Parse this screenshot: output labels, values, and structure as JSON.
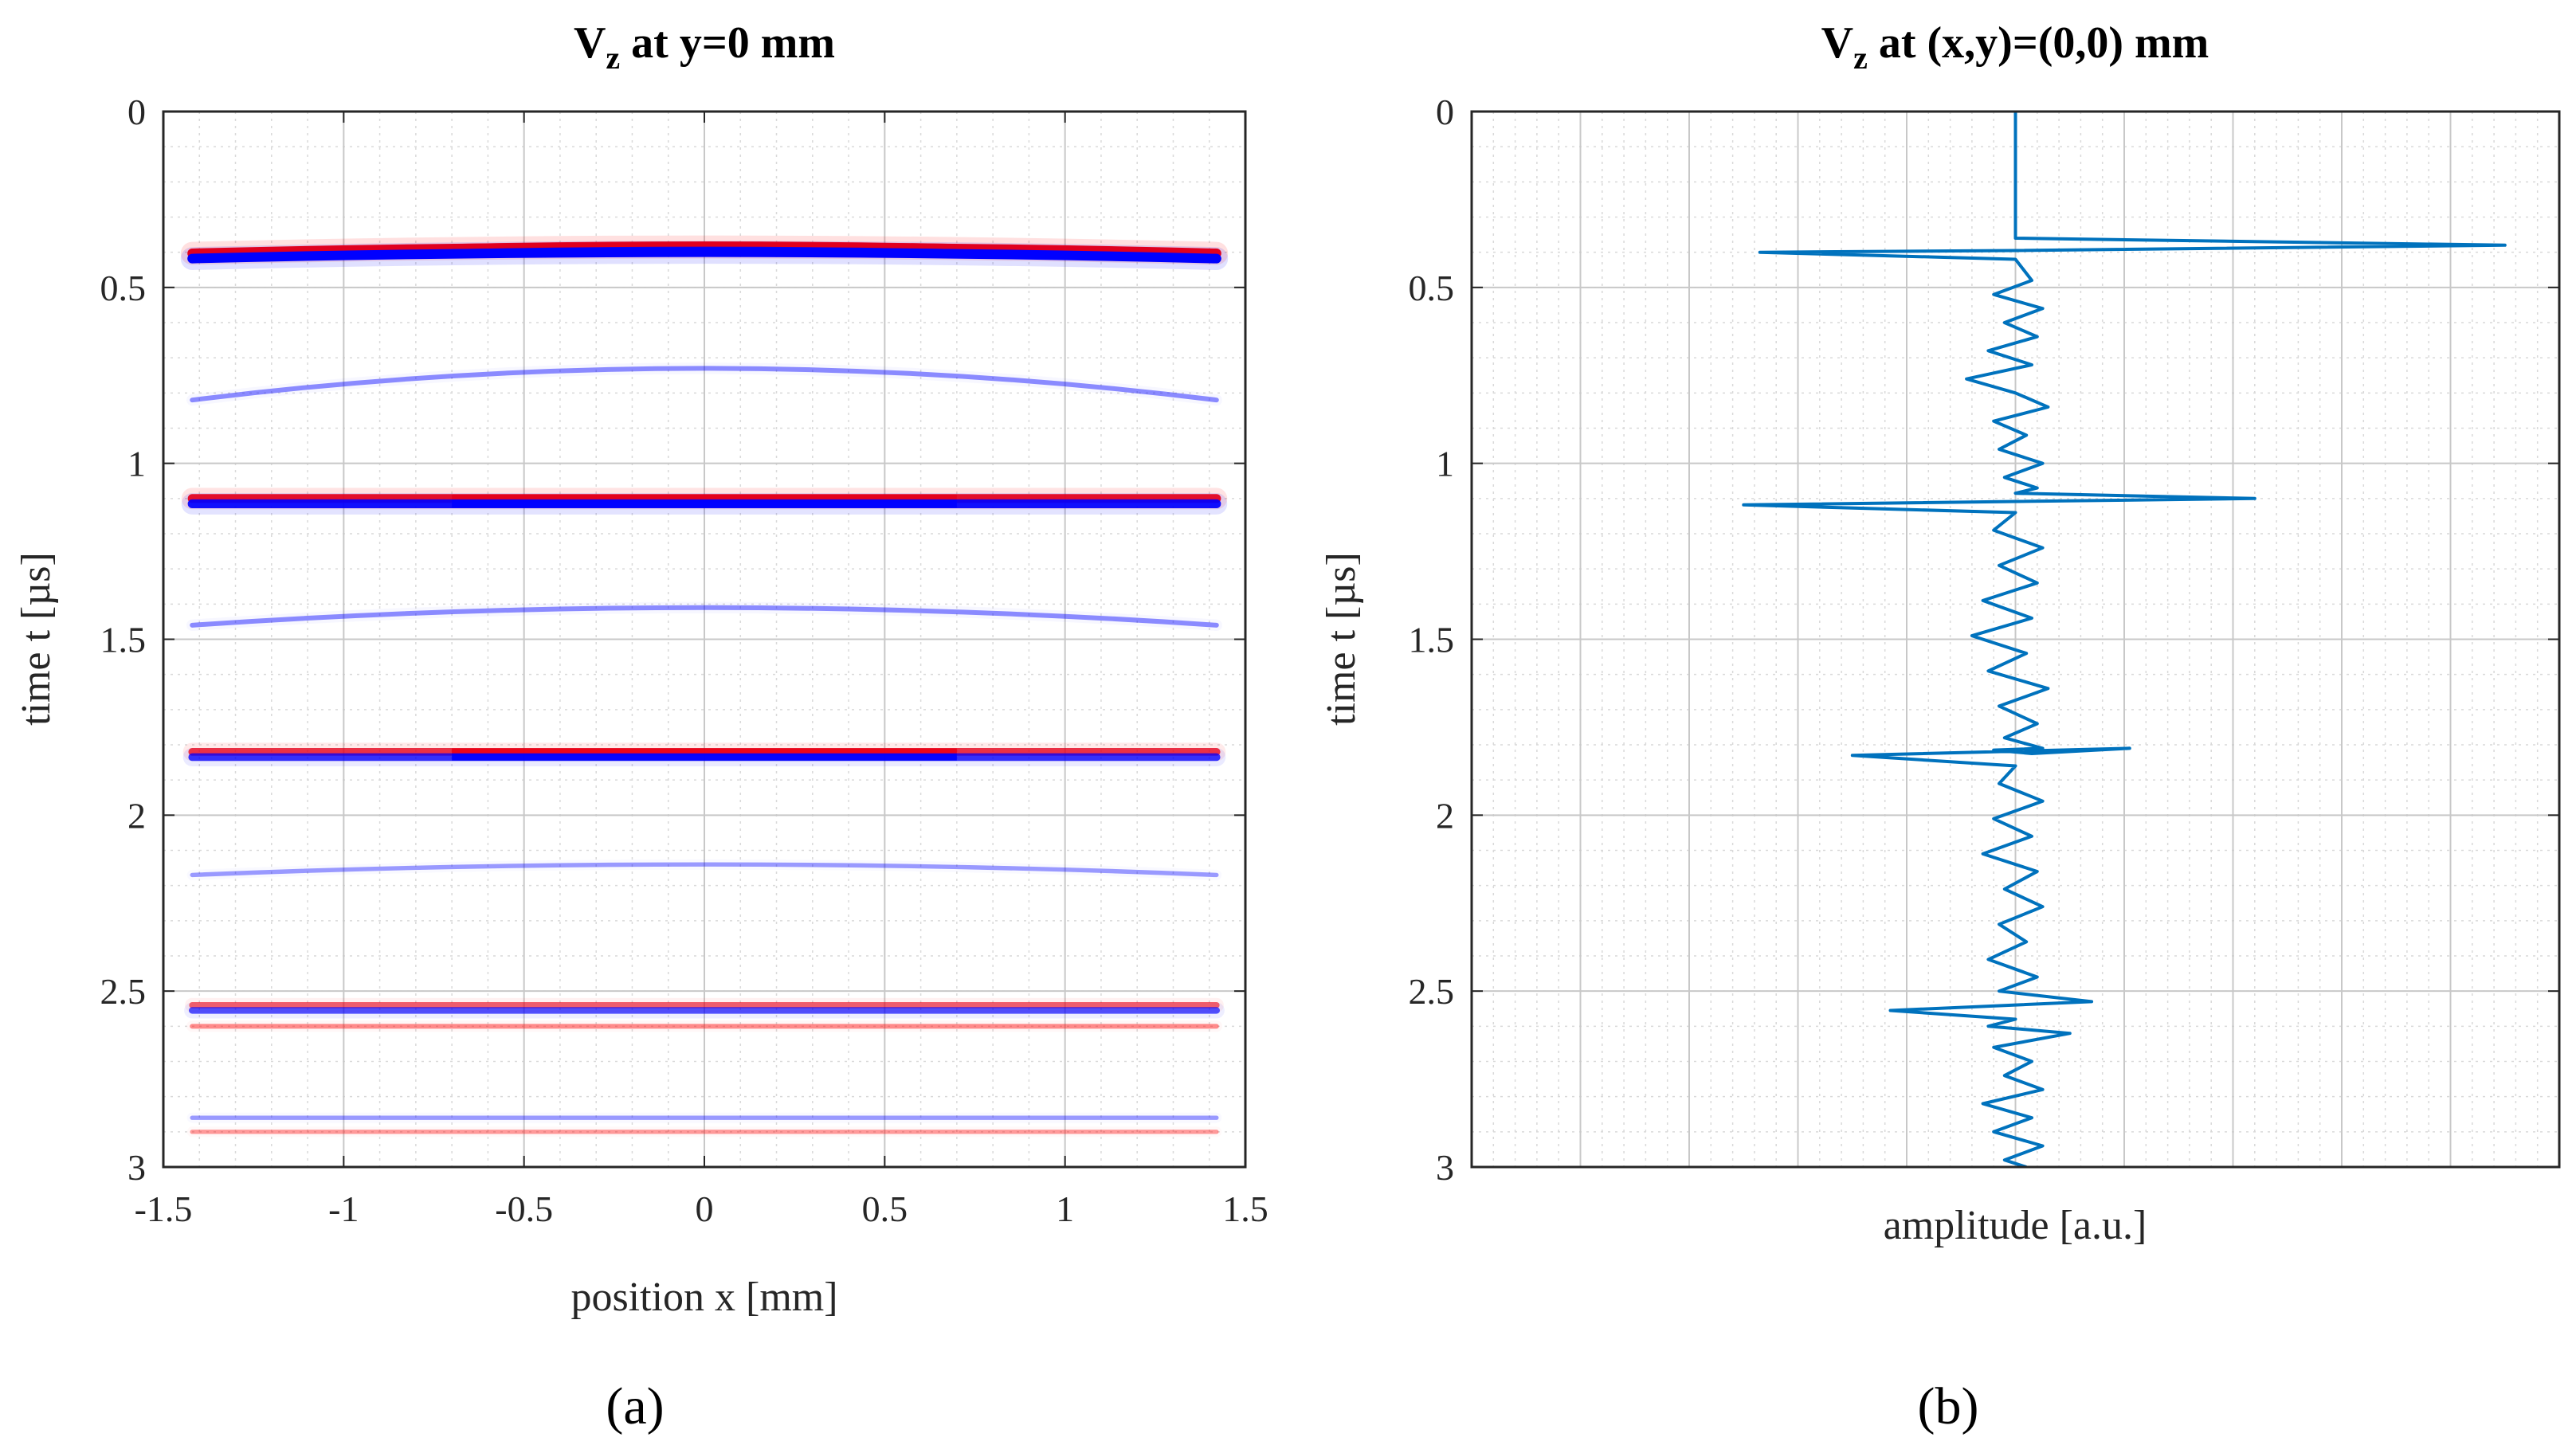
{
  "chart_data": [
    {
      "panel_label": "(a)",
      "type": "heatmap",
      "title": {
        "main": "V",
        "sub": "z",
        "rest": " at y=0 mm"
      },
      "xlabel": "position x [mm]",
      "ylabel": "time t [µs]",
      "xlim": [
        -1.5,
        1.5
      ],
      "ylim": [
        0,
        3
      ],
      "y_reversed": true,
      "xticks": [
        "-1.5",
        "-1",
        "-0.5",
        "0",
        "0.5",
        "1",
        "1.5"
      ],
      "xtick_values": [
        -1.5,
        -1,
        -0.5,
        0,
        0.5,
        1,
        1.5
      ],
      "yticks": [
        "0",
        "0.5",
        "1",
        "1.5",
        "2",
        "2.5",
        "3"
      ],
      "ytick_values": [
        0,
        0.5,
        1,
        1.5,
        2,
        2.5,
        3
      ],
      "grid": true,
      "minor_grid": true,
      "colormap": {
        "positive": "#ff0000",
        "negative": "#0000ff"
      },
      "wavefronts": [
        {
          "t": 0.385,
          "sign": "positive",
          "strength": 1.0,
          "curvature": 0.018
        },
        {
          "t": 0.4,
          "sign": "negative",
          "strength": 1.0,
          "curvature": 0.018
        },
        {
          "t": 0.73,
          "sign": "negative",
          "strength": 0.25,
          "curvature": 0.09
        },
        {
          "t": 1.1,
          "sign": "positive",
          "strength": 0.9,
          "curvature": 0.0
        },
        {
          "t": 1.115,
          "sign": "negative",
          "strength": 0.9,
          "curvature": 0.0
        },
        {
          "t": 1.41,
          "sign": "negative",
          "strength": 0.25,
          "curvature": 0.05
        },
        {
          "t": 1.82,
          "sign": "positive",
          "strength": 0.7,
          "curvature": 0.0
        },
        {
          "t": 1.835,
          "sign": "negative",
          "strength": 0.7,
          "curvature": 0.0
        },
        {
          "t": 2.14,
          "sign": "negative",
          "strength": 0.18,
          "curvature": 0.03
        },
        {
          "t": 2.54,
          "sign": "positive",
          "strength": 0.45,
          "curvature": 0.0
        },
        {
          "t": 2.555,
          "sign": "negative",
          "strength": 0.55,
          "curvature": 0.0
        },
        {
          "t": 2.6,
          "sign": "positive",
          "strength": 0.25,
          "curvature": 0.0
        },
        {
          "t": 2.86,
          "sign": "negative",
          "strength": 0.18,
          "curvature": 0.0
        },
        {
          "t": 2.9,
          "sign": "positive",
          "strength": 0.18,
          "curvature": 0.0
        }
      ]
    },
    {
      "panel_label": "(b)",
      "type": "line",
      "title": {
        "main": "V",
        "sub": "z",
        "rest": " at (x,y)=(0,0) mm"
      },
      "xlabel": "amplitude [a.u.]",
      "ylabel": "time t [µs]",
      "xlim": [
        -1,
        1
      ],
      "ylim": [
        0,
        3
      ],
      "y_reversed": true,
      "xticks": [],
      "yticks": [
        "0",
        "0.5",
        "1",
        "1.5",
        "2",
        "2.5",
        "3"
      ],
      "ytick_values": [
        0,
        0.5,
        1,
        1.5,
        2,
        2.5,
        3
      ],
      "grid": true,
      "minor_grid": true,
      "line_color": "#0072bd",
      "series": [
        {
          "name": "Vz",
          "x": [
            0,
            0,
            0.9,
            0.0,
            -0.47,
            0.0,
            0.03,
            -0.04,
            0.05,
            -0.02,
            0.04,
            -0.05,
            0.03,
            -0.09,
            0.0,
            0.06,
            -0.04,
            0.02,
            -0.03,
            0.05,
            -0.02,
            0.04,
            0.0,
            0.44,
            -0.5,
            0.0,
            -0.04,
            0.05,
            -0.03,
            0.04,
            -0.06,
            0.03,
            -0.08,
            0.02,
            -0.05,
            0.06,
            -0.03,
            0.04,
            -0.02,
            0.05,
            -0.04,
            0.03,
            0.21,
            -0.3,
            0.0,
            -0.03,
            0.05,
            -0.04,
            0.03,
            -0.06,
            0.04,
            -0.02,
            0.05,
            -0.03,
            0.02,
            -0.05,
            0.04,
            -0.03,
            0.14,
            -0.23,
            0.0,
            -0.05,
            0.1,
            -0.04,
            0.03,
            -0.02,
            0.05,
            -0.06,
            0.03,
            -0.04,
            0.05,
            -0.02,
            0.02
          ],
          "t": [
            0,
            0.36,
            0.38,
            0.395,
            0.4,
            0.42,
            0.48,
            0.52,
            0.56,
            0.6,
            0.64,
            0.68,
            0.72,
            0.76,
            0.8,
            0.84,
            0.88,
            0.92,
            0.96,
            1.0,
            1.04,
            1.07,
            1.085,
            1.1,
            1.118,
            1.14,
            1.19,
            1.24,
            1.29,
            1.34,
            1.39,
            1.44,
            1.49,
            1.54,
            1.59,
            1.64,
            1.69,
            1.74,
            1.78,
            1.81,
            1.815,
            1.825,
            1.81,
            1.83,
            1.86,
            1.91,
            1.96,
            2.01,
            2.06,
            2.11,
            2.16,
            2.21,
            2.26,
            2.31,
            2.36,
            2.41,
            2.46,
            2.5,
            2.53,
            2.555,
            2.58,
            2.6,
            2.62,
            2.66,
            2.7,
            2.74,
            2.78,
            2.82,
            2.86,
            2.9,
            2.94,
            2.98,
            3.0
          ]
        }
      ]
    }
  ]
}
